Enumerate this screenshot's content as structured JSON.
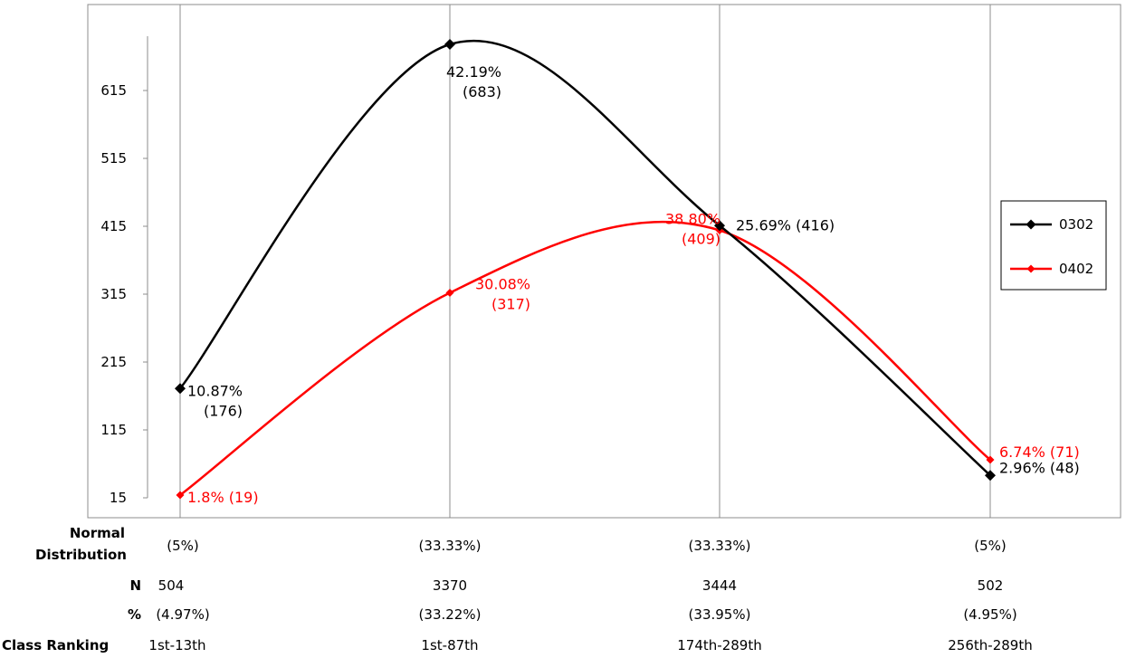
{
  "chart_data": {
    "type": "line",
    "categories": [
      "1st-13th",
      "1st-87th",
      "174th-289th",
      "256th-289th"
    ],
    "y_ticks": [
      "15",
      "115",
      "215",
      "315",
      "415",
      "515",
      "615"
    ],
    "ylim": [
      15,
      700
    ],
    "grid": "vertical",
    "legend_position": "right",
    "series": [
      {
        "name": "0302",
        "color": "#000000",
        "values": [
          176,
          683,
          416,
          48
        ],
        "labels": [
          [
            "10.87%",
            "(176)"
          ],
          [
            "42.19%",
            "(683)"
          ],
          [
            "25.69% (416)"
          ],
          [
            "2.96% (48)"
          ]
        ]
      },
      {
        "name": "0402",
        "color": "#ff0000",
        "values": [
          19,
          317,
          409,
          71
        ],
        "labels": [
          [
            "1.8% (19)"
          ],
          [
            "30.08%",
            "(317)"
          ],
          [
            "38.80%",
            "(409)"
          ],
          [
            "6.74% (71)"
          ]
        ]
      }
    ],
    "table": {
      "normal_distribution": {
        "label_lines": [
          "Normal",
          "Distribution"
        ],
        "values": [
          "(5%)",
          "(33.33%)",
          "(33.33%)",
          "(5%)"
        ]
      },
      "n": {
        "label": "N",
        "values": [
          "504",
          "3370",
          "3444",
          "502"
        ]
      },
      "pct": {
        "label": "%",
        "values": [
          "(4.97%)",
          "(33.22%)",
          "(33.95%)",
          "(4.95%)"
        ]
      },
      "class_ranking": {
        "label": "Class Ranking",
        "values": [
          "1st-13th",
          "1st-87th",
          "174th-289th",
          "256th-289th"
        ]
      }
    }
  }
}
